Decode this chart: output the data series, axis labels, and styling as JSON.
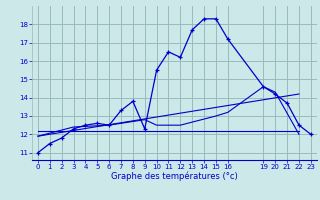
{
  "title": "Graphe des températures (°c)",
  "bg_color": "#cce8e8",
  "grid_color": "#99bbbb",
  "line_color": "#0000cc",
  "xlim": [
    -0.5,
    23.5
  ],
  "ylim": [
    10.6,
    19.0
  ],
  "xticks": [
    0,
    1,
    2,
    3,
    4,
    5,
    6,
    7,
    8,
    9,
    10,
    11,
    12,
    13,
    14,
    15,
    16,
    19,
    20,
    21,
    22,
    23
  ],
  "yticks": [
    11,
    12,
    13,
    14,
    15,
    16,
    17,
    18
  ],
  "series_main": {
    "x": [
      0,
      1,
      2,
      3,
      4,
      5,
      6,
      7,
      8,
      9,
      10,
      11,
      12,
      13,
      14,
      15,
      16,
      19,
      20,
      21,
      22,
      23
    ],
    "y": [
      11.0,
      11.5,
      11.8,
      12.3,
      12.5,
      12.6,
      12.5,
      13.3,
      13.8,
      12.3,
      15.5,
      16.5,
      16.2,
      17.7,
      18.3,
      18.3,
      17.2,
      14.6,
      14.2,
      13.7,
      12.5,
      12.0
    ]
  },
  "series_line1": {
    "x": [
      0,
      3,
      6,
      9,
      10,
      11,
      12,
      15,
      16,
      19,
      20,
      22
    ],
    "y": [
      11.9,
      12.4,
      12.5,
      12.8,
      12.5,
      12.5,
      12.5,
      13.0,
      13.2,
      14.6,
      14.3,
      12.0
    ]
  },
  "series_line2": {
    "x": [
      0,
      22
    ],
    "y": [
      11.9,
      14.2
    ]
  },
  "series_line3": {
    "x": [
      0,
      22
    ],
    "y": [
      12.2,
      12.2
    ]
  }
}
